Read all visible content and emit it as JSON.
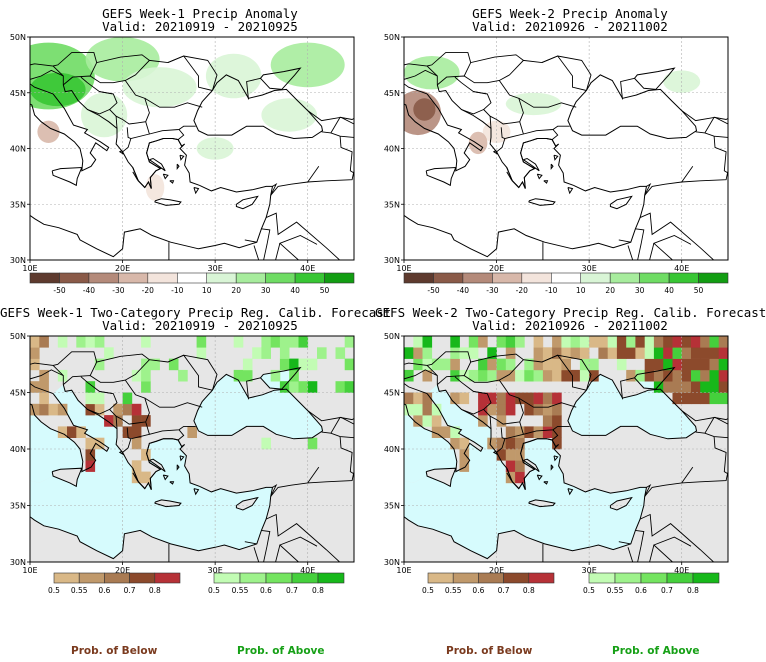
{
  "panels": [
    {
      "title": "GEFS Week-1 Precip Anomaly",
      "valid": "Valid: 20210919 - 20210925",
      "kind": "anomaly",
      "pattern": "w1_anom"
    },
    {
      "title": "GEFS Week-2 Precip Anomaly",
      "valid": "Valid: 20210926 - 20211002",
      "kind": "anomaly",
      "pattern": "w2_anom"
    },
    {
      "title": "GEFS Week-1 Two-Category Precip Reg. Calib. Forecast",
      "valid": "Valid: 20210919 - 20210925",
      "kind": "prob",
      "pattern": "w1_prob"
    },
    {
      "title": "GEFS Week-2 Two-Category Precip Reg. Calib. Forecast",
      "valid": "Valid: 20210926 - 20211002",
      "kind": "prob",
      "pattern": "w2_prob"
    }
  ],
  "axes": {
    "lat_labels": [
      "50N",
      "45N",
      "40N",
      "35N",
      "30N"
    ],
    "lon_labels": [
      "10E",
      "20E",
      "30E",
      "40E"
    ],
    "lat_range": [
      30,
      50
    ],
    "lon_range": [
      10,
      45
    ]
  },
  "anomaly_colorbar": {
    "labels": [
      "-50",
      "-40",
      "-30",
      "-20",
      "-10",
      "10",
      "20",
      "30",
      "40",
      "50"
    ],
    "colors": [
      "#5e3a2e",
      "#8a5a48",
      "#b48a7a",
      "#d8b8aa",
      "#f3e4dc",
      "#ffffff",
      "#d9f5d6",
      "#a7ec9d",
      "#6fdc64",
      "#38c634",
      "#129d12"
    ]
  },
  "below_colorbar": {
    "labels": [
      "0.5",
      "0.55",
      "0.6",
      "0.7",
      "0.8"
    ],
    "colors": [
      "#d9b887",
      "#c0996b",
      "#a97b53",
      "#8c4a2c",
      "#b63137"
    ]
  },
  "above_colorbar": {
    "labels": [
      "0.5",
      "0.55",
      "0.6",
      "0.7",
      "0.8"
    ],
    "colors": [
      "#c2fcb4",
      "#9ef28c",
      "#74e460",
      "#45d03c",
      "#17b81a"
    ]
  },
  "legend": {
    "below": "Prob. of Below",
    "above": "Prob. of Above",
    "below_color": "#7a3a1e",
    "above_color": "#16a016"
  },
  "colors": {
    "sea": "#d6fbfd",
    "no_signal_land": "#e6e6e6",
    "coast": "#000000",
    "grid": "#b0b0b0"
  }
}
